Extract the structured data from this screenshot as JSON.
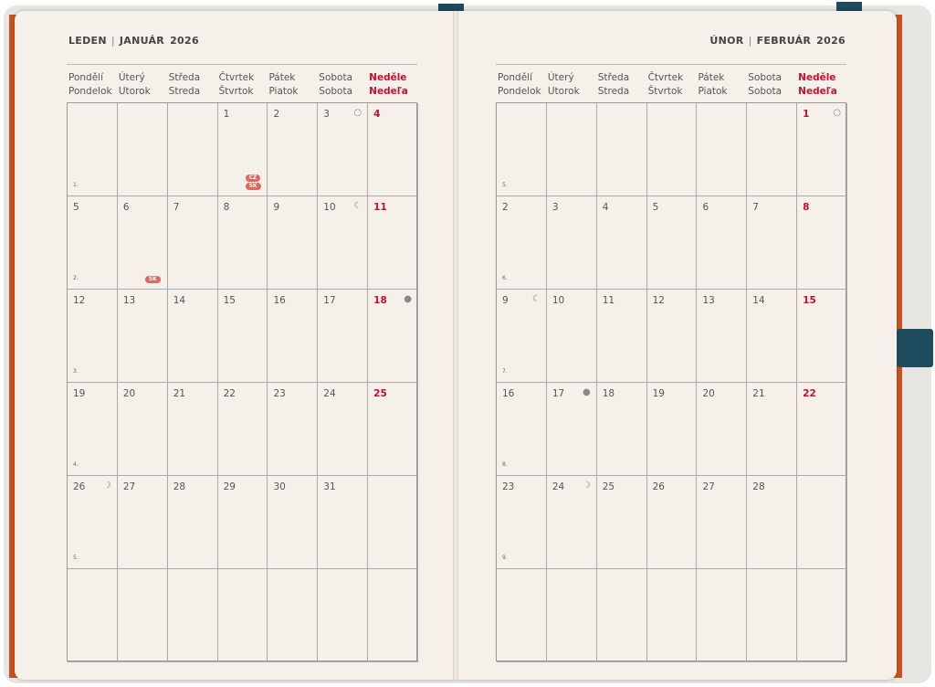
{
  "pages": [
    {
      "title_cz": "LEDEN",
      "title_sk": "JANUÁR",
      "year": "2026",
      "weeks": [
        {
          "wk": "1.",
          "days": [
            "",
            "",
            "",
            "1",
            "2",
            "3",
            "4"
          ]
        },
        {
          "wk": "2.",
          "days": [
            "5",
            "6",
            "7",
            "8",
            "9",
            "10",
            "11"
          ]
        },
        {
          "wk": "3.",
          "days": [
            "12",
            "13",
            "14",
            "15",
            "16",
            "17",
            "18"
          ]
        },
        {
          "wk": "4.",
          "days": [
            "19",
            "20",
            "21",
            "22",
            "23",
            "24",
            "25"
          ]
        },
        {
          "wk": "5.",
          "days": [
            "26",
            "27",
            "28",
            "29",
            "30",
            "31",
            ""
          ]
        },
        {
          "wk": "",
          "days": [
            "",
            "",
            "",
            "",
            "",
            "",
            ""
          ]
        }
      ],
      "moons": {
        "3": "full-moon-icon",
        "10": "last-quarter-icon",
        "18": "new-moon-icon",
        "26": "first-quarter-icon"
      },
      "holidays": {
        "1": [
          "CZ",
          "SK"
        ],
        "6": [
          "SK"
        ]
      }
    },
    {
      "title_cz": "ÚNOR",
      "title_sk": "FEBRUÁR",
      "year": "2026",
      "weeks": [
        {
          "wk": "5.",
          "days": [
            "",
            "",
            "",
            "",
            "",
            "",
            "1"
          ]
        },
        {
          "wk": "6.",
          "days": [
            "2",
            "3",
            "4",
            "5",
            "6",
            "7",
            "8"
          ]
        },
        {
          "wk": "7.",
          "days": [
            "9",
            "10",
            "11",
            "12",
            "13",
            "14",
            "15"
          ]
        },
        {
          "wk": "8.",
          "days": [
            "16",
            "17",
            "18",
            "19",
            "20",
            "21",
            "22"
          ]
        },
        {
          "wk": "9.",
          "days": [
            "23",
            "24",
            "25",
            "26",
            "27",
            "28",
            ""
          ]
        },
        {
          "wk": "",
          "days": [
            "",
            "",
            "",
            "",
            "",
            "",
            ""
          ]
        }
      ],
      "moons": {
        "1": "full-moon-icon",
        "9": "last-quarter-icon",
        "17": "new-moon-icon",
        "24": "first-quarter-icon"
      },
      "holidays": {}
    }
  ],
  "weekdays": [
    [
      "Pondělí",
      "Pondelok"
    ],
    [
      "Úterý",
      "Utorok"
    ],
    [
      "Středa",
      "Streda"
    ],
    [
      "Čtvrtek",
      "Štvrtok"
    ],
    [
      "Pátek",
      "Piatok"
    ],
    [
      "Sobota",
      "Sobota"
    ],
    [
      "Neděle",
      "Nedeľa"
    ]
  ],
  "colors": {
    "sunday": "#c8102e",
    "badge": "#e0675a",
    "cover_edge": "#c9521e",
    "band": "#1d4a5c"
  }
}
